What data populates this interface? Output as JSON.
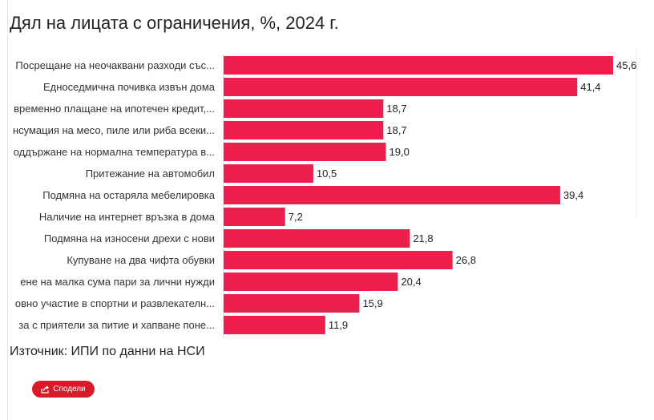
{
  "chart_data": {
    "type": "bar",
    "orientation": "horizontal",
    "title": "Дял на лицата с ограничения, %, 2024 г.",
    "categories": [
      "Посрещане на неочаквани разходи със...",
      "Едноседмична почивка извън дома",
      "временно плащане на ипотечен кредит,...",
      "нсумация на месо, пиле или риба всеки...",
      "оддържане на нормална температура в...",
      "Притежание на автомобил",
      "Подмяна на остаряла мебелировка",
      "Наличие на интернет връзка в дома",
      "Подмяна на износени дрехи с нови",
      "Купуване на два чифта обувки",
      "ене на малка сума пари за лични нужди",
      "овно участие в спортни и развлекателн...",
      "за с приятели за питие и хапване поне..."
    ],
    "values": [
      45.6,
      41.4,
      18.7,
      18.7,
      19.0,
      10.5,
      39.4,
      7.2,
      21.8,
      26.8,
      20.4,
      15.9,
      11.9
    ],
    "value_labels": [
      "45,6",
      "41,4",
      "18,7",
      "18,7",
      "19,0",
      "10,5",
      "39,4",
      "7,2",
      "21,8",
      "26,8",
      "20,4",
      "15,9",
      "11,9"
    ],
    "xlim": [
      0,
      45.6
    ],
    "grid": false,
    "bar_color": "#ef1f4d"
  },
  "source": "Източник: ИПИ по данни на НСИ",
  "share": {
    "label": "Сподели",
    "icon": "share-icon",
    "color": "#d81b29"
  }
}
